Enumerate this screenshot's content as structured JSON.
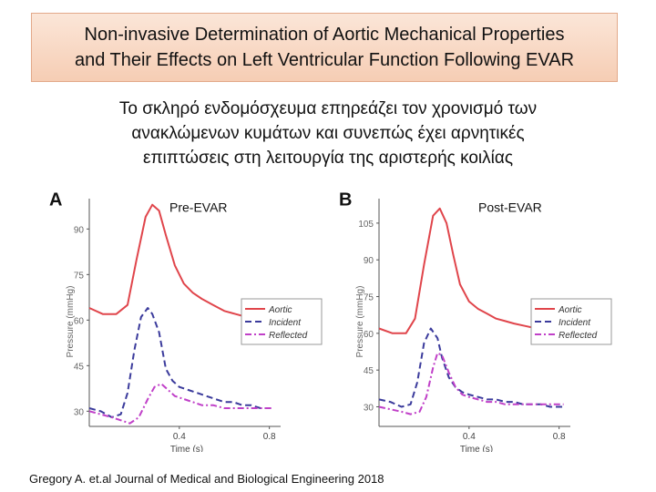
{
  "header": {
    "title_line1": "Non‑invasive Determination of Aortic Mechanical Properties",
    "title_line2": "and Their Effects on Left Ventricular Function Following EVAR"
  },
  "subtitle": {
    "line1": "Το σκληρό ενδομόσχευμα επηρεάζει τον χρονισμό των",
    "line2": "ανακλώμενων κυμάτων και συνεπώς έχει αρνητικές",
    "line3": "επιπτώσεις στη λειτουργία της αριστερής κοιλίας"
  },
  "citation": "Gregory A. et.al  Journal of Medical and Biological Engineering 2018",
  "colors": {
    "aortic": "#e0454b",
    "incident": "#3b3b9c",
    "reflected": "#c040c8"
  },
  "chart_data": [
    {
      "type": "line",
      "panel_label": "A",
      "title": "Pre-EVAR",
      "xlabel": "Time (s)",
      "ylabel": "Pressure (mmHg)",
      "xlim": [
        0,
        0.85
      ],
      "ylim": [
        25,
        100
      ],
      "xticks": [
        0.4,
        0.8
      ],
      "xtick_labels": [
        "0.4",
        "0.8"
      ],
      "yticks": [
        30,
        45,
        60,
        75,
        90
      ],
      "ytick_labels": [
        "30",
        "45",
        "60",
        "75",
        "90"
      ],
      "legend": [
        "Aortic",
        "Incident",
        "Reflected"
      ],
      "legend_position": "right",
      "series": [
        {
          "name": "Aortic",
          "color": "#e0454b",
          "dash": "solid",
          "x": [
            0,
            0.06,
            0.12,
            0.17,
            0.21,
            0.25,
            0.28,
            0.31,
            0.34,
            0.38,
            0.42,
            0.46,
            0.5,
            0.55,
            0.6,
            0.65,
            0.7,
            0.75,
            0.8,
            0.82
          ],
          "y": [
            64,
            62,
            62,
            65,
            80,
            94,
            98,
            96,
            88,
            78,
            72,
            69,
            67,
            65,
            63,
            62,
            61,
            60,
            59,
            59
          ]
        },
        {
          "name": "Incident",
          "color": "#3b3b9c",
          "dash": "dash",
          "x": [
            0,
            0.05,
            0.1,
            0.14,
            0.17,
            0.2,
            0.23,
            0.26,
            0.28,
            0.31,
            0.34,
            0.37,
            0.4,
            0.44,
            0.48,
            0.52,
            0.56,
            0.6,
            0.64,
            0.68,
            0.72,
            0.76,
            0.8,
            0.82
          ],
          "y": [
            31,
            30,
            28,
            29,
            36,
            50,
            61,
            64,
            62,
            56,
            44,
            40,
            38,
            37,
            36,
            35,
            34,
            33,
            33,
            32,
            32,
            31,
            31,
            31
          ]
        },
        {
          "name": "Reflected",
          "color": "#c040c8",
          "dash": "dashdot",
          "x": [
            0,
            0.05,
            0.1,
            0.14,
            0.18,
            0.22,
            0.26,
            0.29,
            0.32,
            0.35,
            0.38,
            0.42,
            0.46,
            0.5,
            0.55,
            0.6,
            0.65,
            0.7,
            0.75,
            0.8,
            0.82
          ],
          "y": [
            30,
            29,
            28,
            27,
            26,
            28,
            34,
            38,
            39,
            37,
            35,
            34,
            33,
            32,
            32,
            31,
            31,
            31,
            31,
            31,
            31
          ]
        }
      ]
    },
    {
      "type": "line",
      "panel_label": "B",
      "title": "Post-EVAR",
      "xlabel": "Time (s)",
      "ylabel": "Pressure (mmHg)",
      "xlim": [
        0,
        0.85
      ],
      "ylim": [
        22,
        115
      ],
      "xticks": [
        0.4,
        0.8
      ],
      "xtick_labels": [
        "0.4",
        "0.8"
      ],
      "yticks": [
        30,
        45,
        60,
        75,
        90,
        105
      ],
      "ytick_labels": [
        "30",
        "45",
        "60",
        "75",
        "90",
        "105"
      ],
      "legend": [
        "Aortic",
        "Incident",
        "Reflected"
      ],
      "legend_position": "right",
      "series": [
        {
          "name": "Aortic",
          "color": "#e0454b",
          "dash": "solid",
          "x": [
            0,
            0.06,
            0.12,
            0.16,
            0.2,
            0.24,
            0.27,
            0.3,
            0.33,
            0.36,
            0.4,
            0.44,
            0.48,
            0.52,
            0.56,
            0.6,
            0.65,
            0.7,
            0.75,
            0.8,
            0.82
          ],
          "y": [
            62,
            60,
            60,
            66,
            88,
            108,
            111,
            105,
            92,
            80,
            73,
            70,
            68,
            66,
            65,
            64,
            63,
            62,
            61,
            60,
            60
          ]
        },
        {
          "name": "Incident",
          "color": "#3b3b9c",
          "dash": "dash",
          "x": [
            0,
            0.05,
            0.1,
            0.14,
            0.17,
            0.2,
            0.23,
            0.26,
            0.28,
            0.31,
            0.34,
            0.37,
            0.4,
            0.44,
            0.48,
            0.52,
            0.56,
            0.6,
            0.64,
            0.68,
            0.72,
            0.76,
            0.8,
            0.82
          ],
          "y": [
            33,
            32,
            30,
            31,
            40,
            56,
            62,
            58,
            50,
            42,
            38,
            36,
            35,
            34,
            33,
            33,
            32,
            32,
            31,
            31,
            31,
            30,
            30,
            30
          ]
        },
        {
          "name": "Reflected",
          "color": "#c040c8",
          "dash": "dashdot",
          "x": [
            0,
            0.05,
            0.1,
            0.14,
            0.18,
            0.21,
            0.24,
            0.26,
            0.28,
            0.31,
            0.34,
            0.37,
            0.4,
            0.44,
            0.48,
            0.52,
            0.56,
            0.6,
            0.65,
            0.7,
            0.75,
            0.8,
            0.82
          ],
          "y": [
            30,
            29,
            28,
            27,
            28,
            34,
            46,
            52,
            51,
            44,
            38,
            35,
            34,
            33,
            32,
            32,
            31,
            31,
            31,
            31,
            31,
            31,
            31
          ]
        }
      ]
    }
  ]
}
